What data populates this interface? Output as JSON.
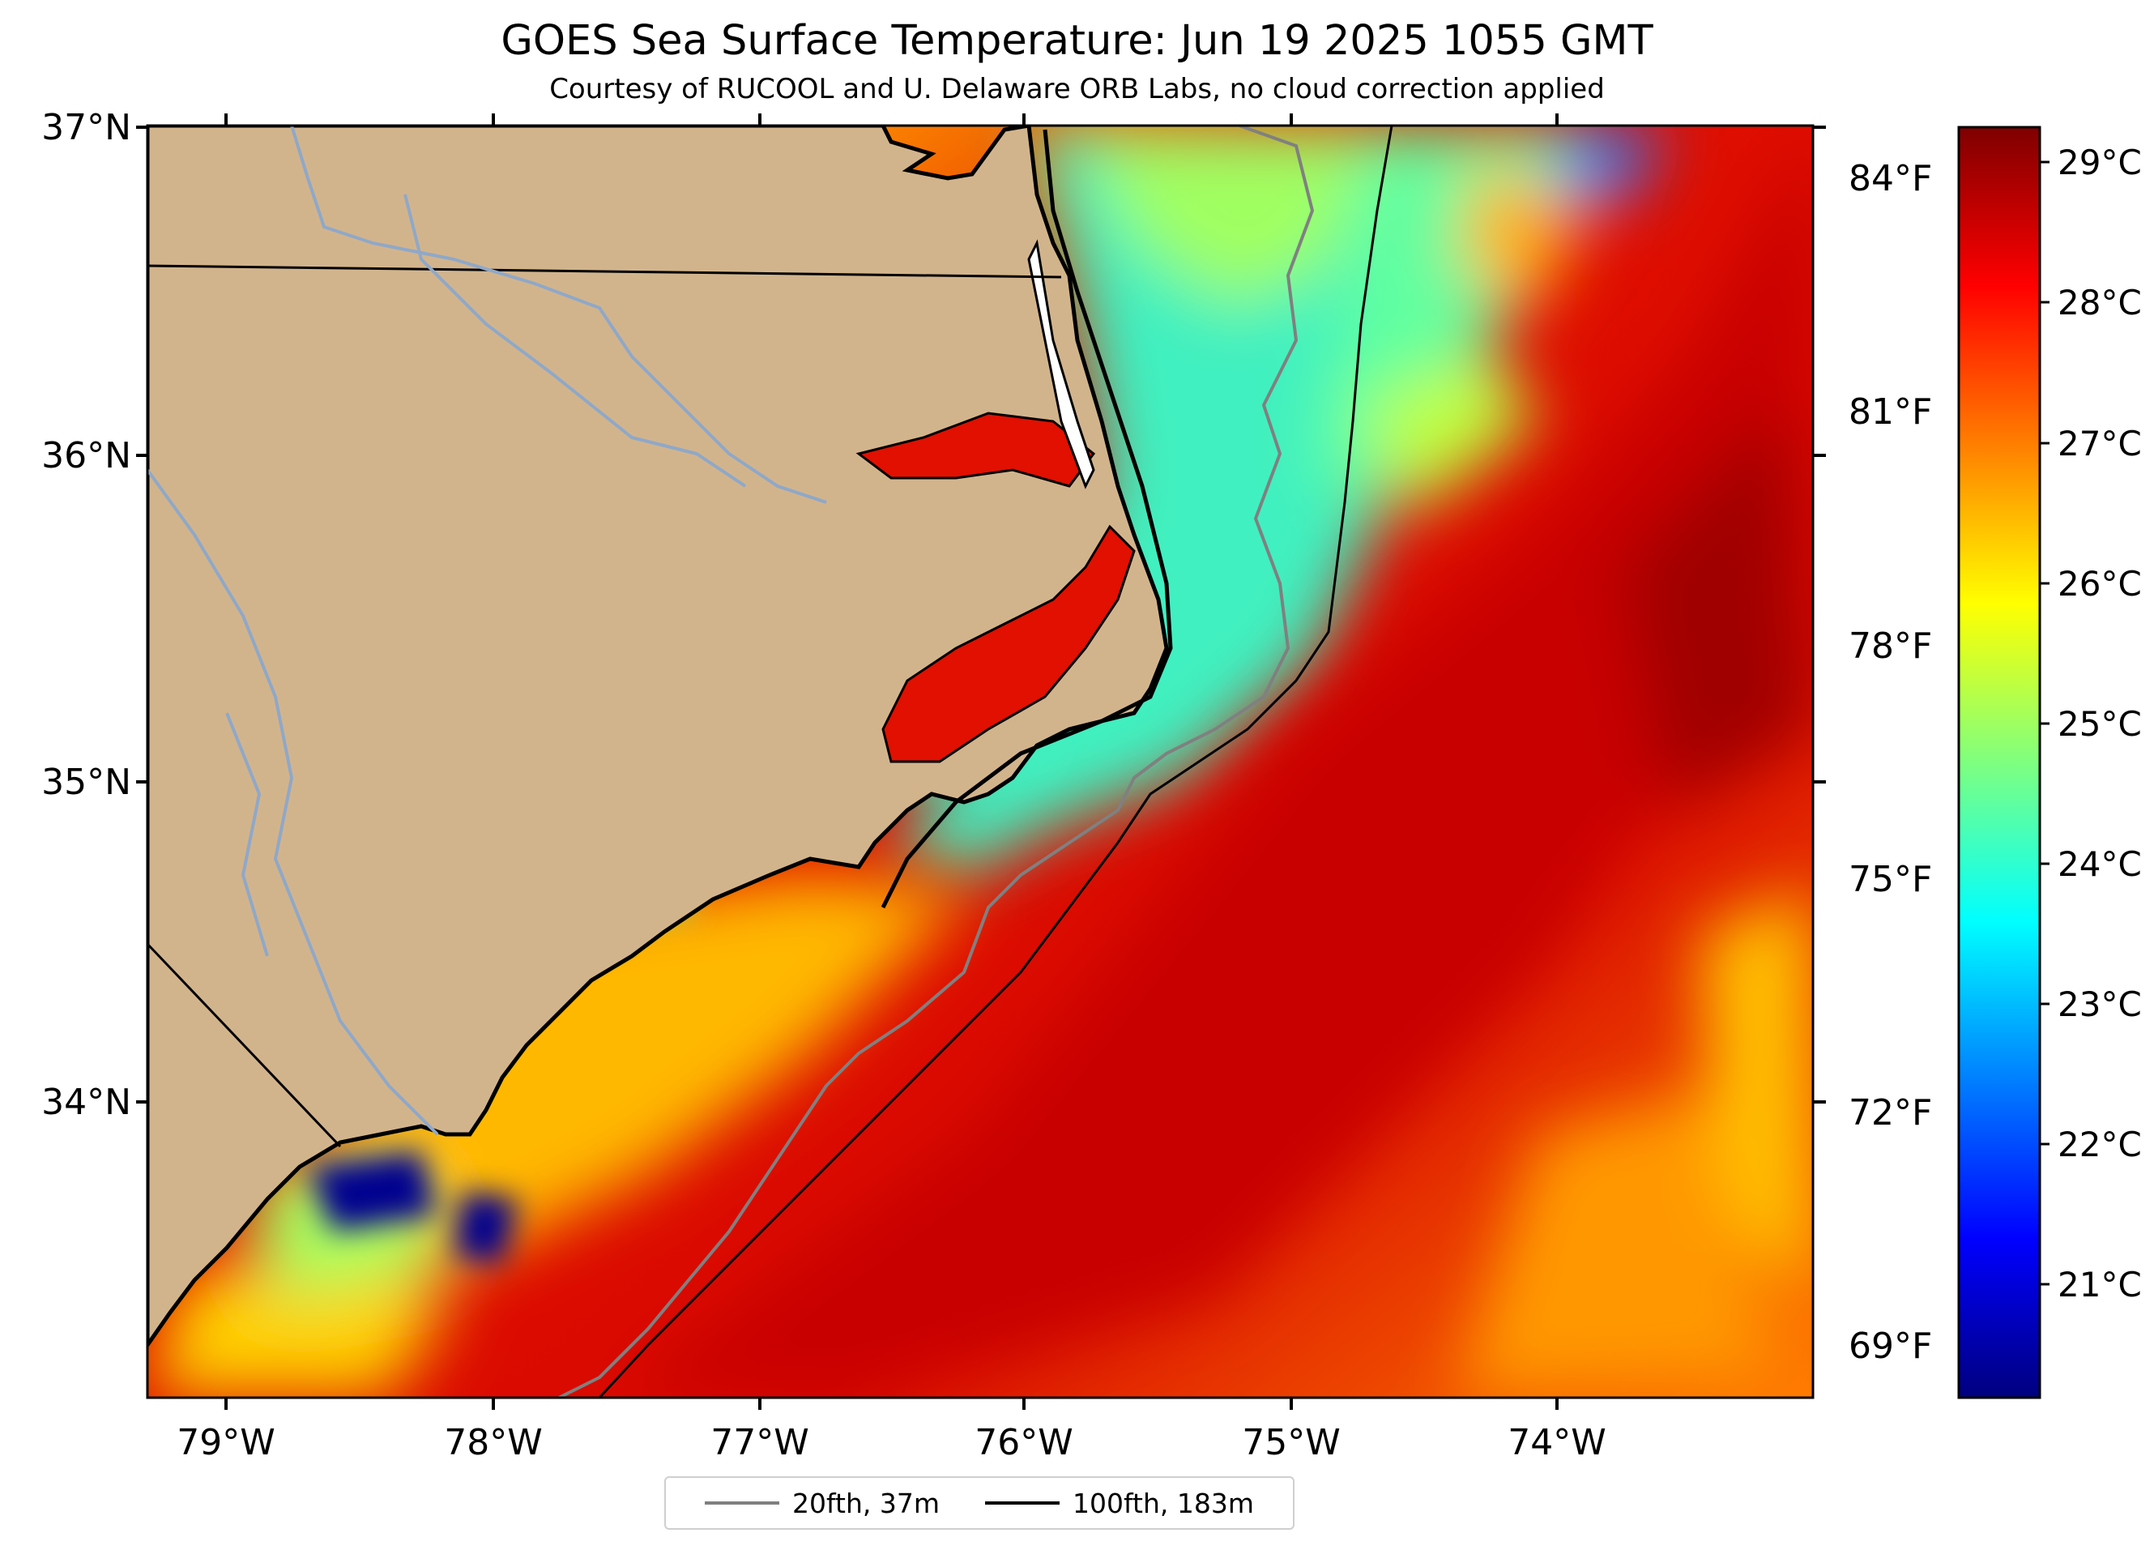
{
  "title": "GOES Sea Surface Temperature: Jun 19 2025 1055 GMT",
  "subtitle": "Courtesy of RUCOOL and U. Delaware ORB Labs, no cloud correction applied",
  "map": {
    "lon_range": [
      -79.3,
      -73.1
    ],
    "lat_range": [
      33.1,
      37.0
    ],
    "land_color": "#d2b48c",
    "river_color": "#8fa8c8",
    "coast_color": "#000000"
  },
  "lat_labels": [
    "37°N",
    "36°N",
    "35°N",
    "34°N"
  ],
  "lon_labels": [
    "79°W",
    "78°W",
    "77°W",
    "76°W",
    "75°W",
    "74°W"
  ],
  "right_axis_labels": [
    "84°F",
    "81°F",
    "78°F",
    "75°F",
    "72°F",
    "69°F"
  ],
  "colorbar": {
    "labels": [
      "29°C",
      "28°C",
      "27°C",
      "26°C",
      "25°C",
      "24°C",
      "23°C",
      "22°C",
      "21°C"
    ],
    "colormap": [
      "#00007f",
      "#0000ff",
      "#007fff",
      "#00ffff",
      "#7fff7f",
      "#ffff00",
      "#ff7f00",
      "#ff0000",
      "#7f0000"
    ]
  },
  "legend": {
    "items": [
      {
        "label": "20fth, 37m",
        "color": "#808080"
      },
      {
        "label": "100fth, 183m",
        "color": "#000000"
      }
    ]
  }
}
